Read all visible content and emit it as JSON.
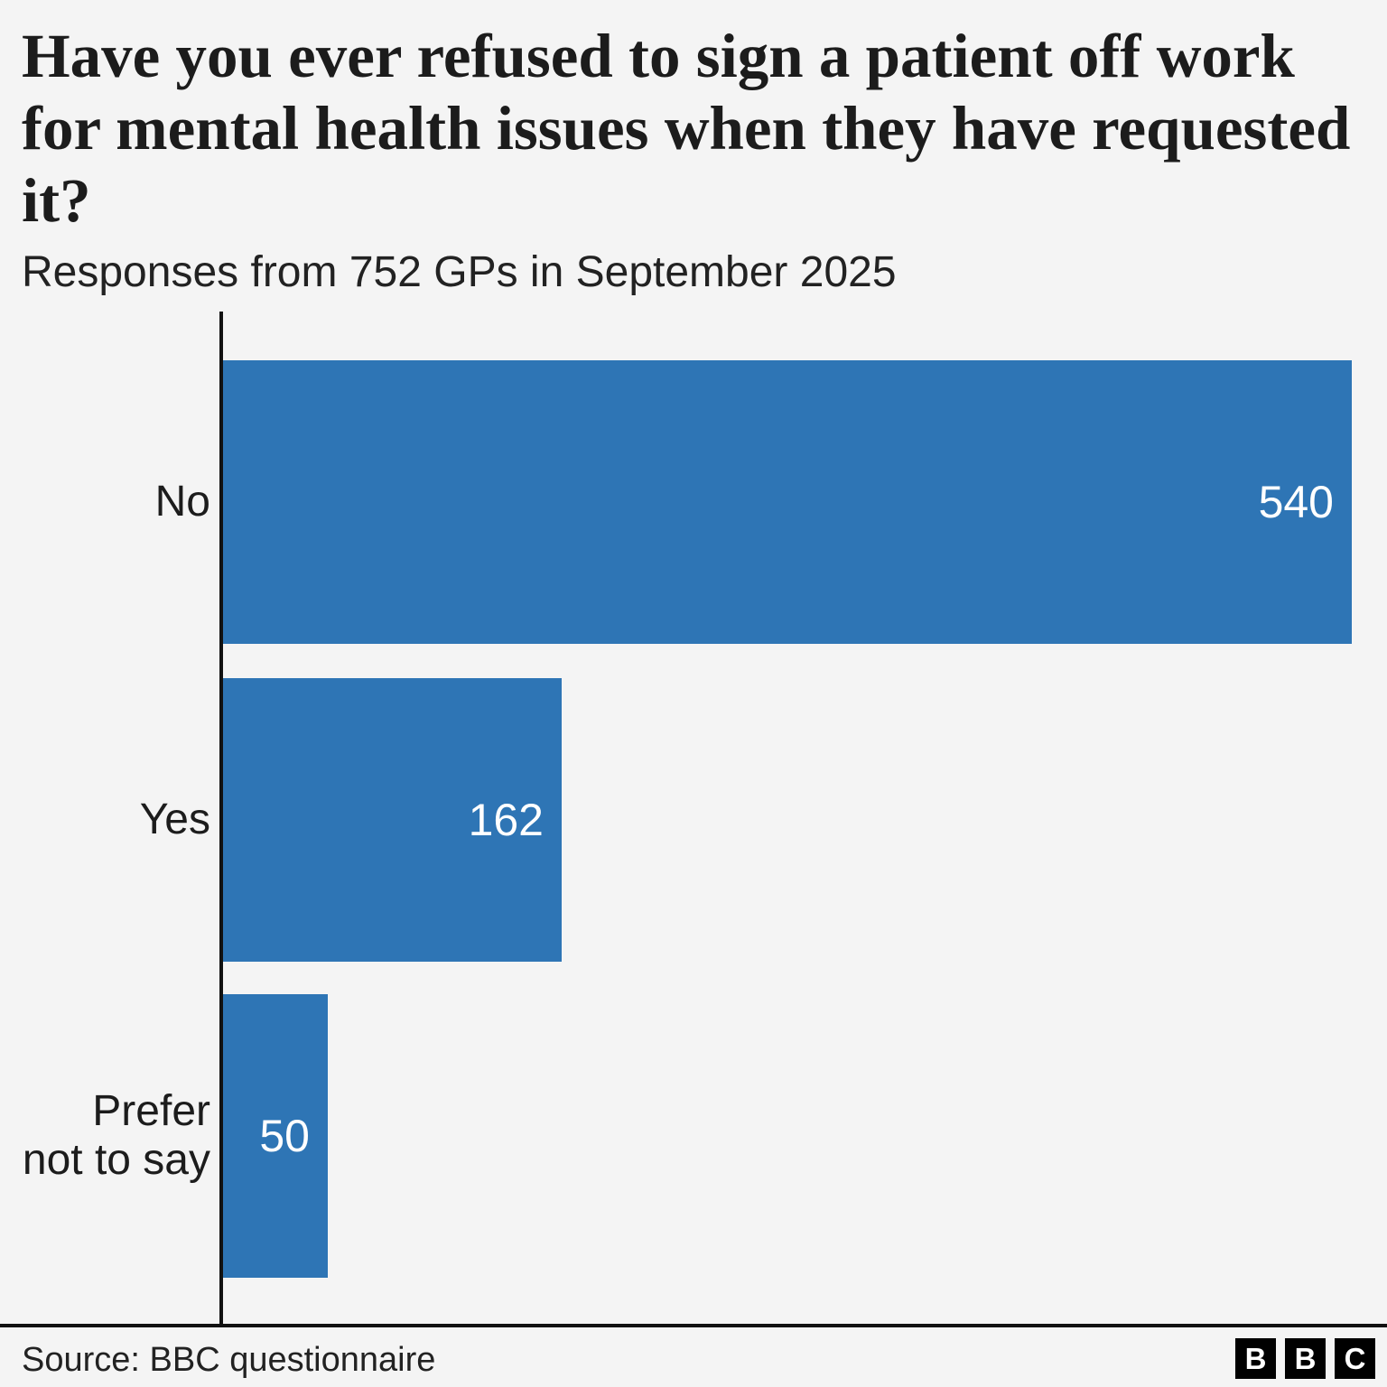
{
  "chart_data": {
    "type": "bar",
    "orientation": "horizontal",
    "title": "Have you ever refused to sign a patient off work for mental health issues when they have requested it?",
    "subtitle": "Responses from 752 GPs in September 2025",
    "categories": [
      "No",
      "Yes",
      "Prefer not to say"
    ],
    "category_display": [
      "No",
      "Yes",
      "Prefer\nnot to say"
    ],
    "values": [
      540,
      162,
      50
    ],
    "value_labels": [
      "540",
      "162",
      "50"
    ],
    "value_label_position": "inside-end",
    "xlim": [
      0,
      540
    ],
    "grid": false,
    "legend": false,
    "bar_color": "#2e75b5",
    "value_label_color": "#ffffff",
    "axis_color": "#121212"
  },
  "footer": {
    "source": "Source: BBC questionnaire",
    "logo_letters": [
      "B",
      "B",
      "C"
    ]
  }
}
